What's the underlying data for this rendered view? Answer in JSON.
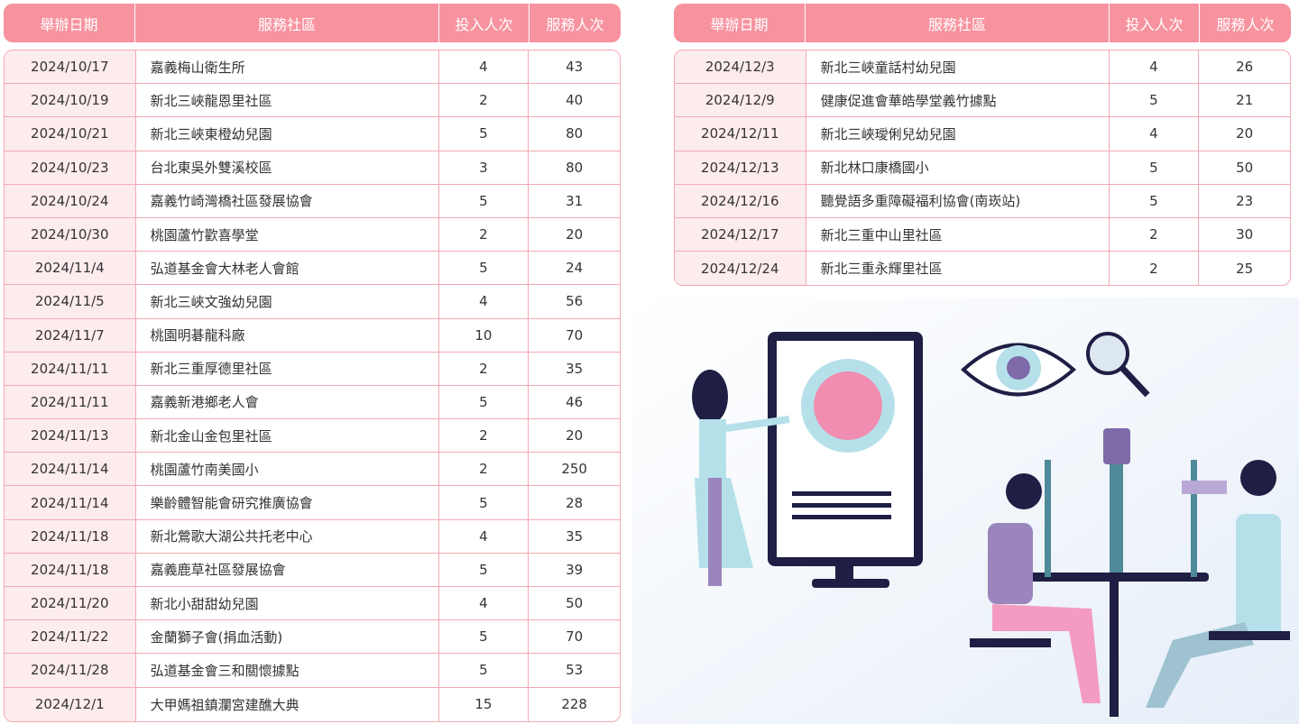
{
  "headers": [
    "舉辦日期",
    "服務社區",
    "投入人次",
    "服務人次"
  ],
  "left_rows": [
    [
      "2024/10/17",
      "嘉義梅山衛生所",
      "4",
      "43"
    ],
    [
      "2024/10/19",
      "新北三峽龍恩里社區",
      "2",
      "40"
    ],
    [
      "2024/10/21",
      "新北三峽東橙幼兒園",
      "5",
      "80"
    ],
    [
      "2024/10/23",
      "台北東吳外雙溪校區",
      "3",
      "80"
    ],
    [
      "2024/10/24",
      "嘉義竹崎灣橋社區發展協會",
      "5",
      "31"
    ],
    [
      "2024/10/30",
      "桃園蘆竹歡喜學堂",
      "2",
      "20"
    ],
    [
      "2024/11/4",
      "弘道基金會大林老人會館",
      "5",
      "24"
    ],
    [
      "2024/11/5",
      "新北三峽文強幼兒園",
      "4",
      "56"
    ],
    [
      "2024/11/7",
      "桃園明碁龍科廠",
      "10",
      "70"
    ],
    [
      "2024/11/11",
      "新北三重厚德里社區",
      "2",
      "35"
    ],
    [
      "2024/11/11",
      "嘉義新港鄉老人會",
      "5",
      "46"
    ],
    [
      "2024/11/13",
      "新北金山金包里社區",
      "2",
      "20"
    ],
    [
      "2024/11/14",
      "桃園蘆竹南美國小",
      "2",
      "250"
    ],
    [
      "2024/11/14",
      "樂齡體智能會研究推廣協會",
      "5",
      "28"
    ],
    [
      "2024/11/18",
      "新北鶯歌大湖公共托老中心",
      "4",
      "35"
    ],
    [
      "2024/11/18",
      "嘉義鹿草社區發展協會",
      "5",
      "39"
    ],
    [
      "2024/11/20",
      "新北小甜甜幼兒園",
      "4",
      "50"
    ],
    [
      "2024/11/22",
      "金蘭獅子會(捐血活動)",
      "5",
      "70"
    ],
    [
      "2024/11/28",
      "弘道基金會三和關懷據點",
      "5",
      "53"
    ],
    [
      "2024/12/1",
      "大甲媽祖鎮瀾宮建醮大典",
      "15",
      "228"
    ]
  ],
  "right_rows": [
    [
      "2024/12/3",
      "新北三峽童話村幼兒園",
      "4",
      "26"
    ],
    [
      "2024/12/9",
      "健康促進會華皓學堂義竹據點",
      "5",
      "21"
    ],
    [
      "2024/12/11",
      "新北三峽璦俐兒幼兒園",
      "4",
      "20"
    ],
    [
      "2024/12/13",
      "新北林口康橋國小",
      "5",
      "50"
    ],
    [
      "2024/12/16",
      "聽覺語多重障礙福利協會(南崁站)",
      "5",
      "23"
    ],
    [
      "2024/12/17",
      "新北三重中山里社區",
      "2",
      "30"
    ],
    [
      "2024/12/24",
      "新北三重永輝里社區",
      "2",
      "25"
    ]
  ],
  "colors": {
    "header": "#f7939f",
    "border": "#f4a9b2",
    "date_cell": "#fdecee"
  },
  "illustration": "eye-exam-illustration"
}
